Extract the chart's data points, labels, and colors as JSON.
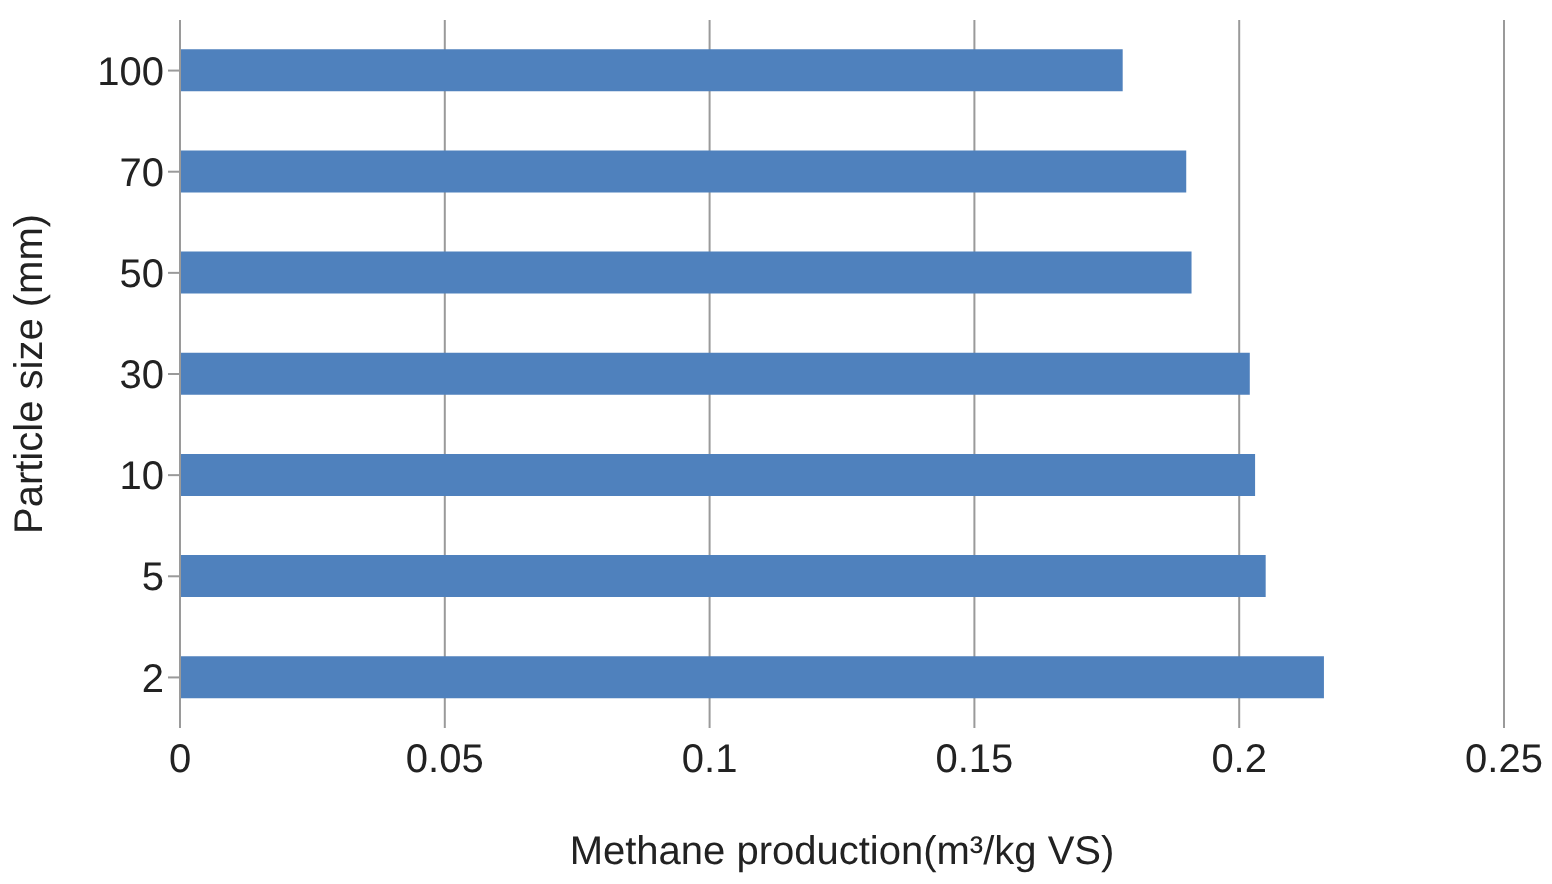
{
  "chart_data": {
    "type": "bar",
    "orientation": "horizontal",
    "xlabel": "Methane production(m³/kg VS)",
    "ylabel": "Particle size (mm)",
    "categories": [
      "100",
      "70",
      "50",
      "30",
      "10",
      "5",
      "2"
    ],
    "values": [
      0.178,
      0.19,
      0.191,
      0.202,
      0.203,
      0.205,
      0.216
    ],
    "color": "#4f81bd",
    "xlim": [
      0,
      0.25
    ],
    "xticks": [
      0,
      0.05,
      0.1,
      0.15,
      0.2,
      0.25
    ],
    "grid": "x"
  }
}
